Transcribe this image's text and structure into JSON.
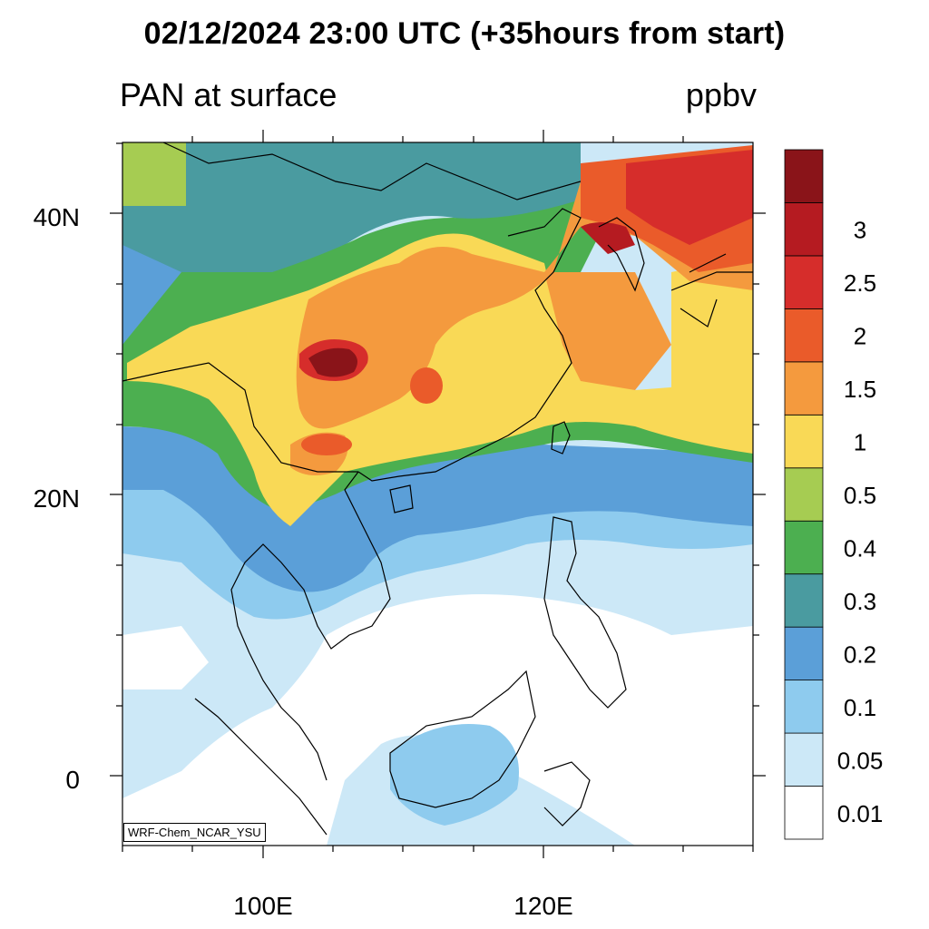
{
  "title": "02/12/2024 23:00 UTC (+35hours from start)",
  "subtitle_left": "PAN at surface",
  "subtitle_right": "ppbv",
  "credit": "WRF-Chem_NCAR_YSU",
  "map": {
    "lon_range": [
      90,
      135
    ],
    "lat_range": [
      -5,
      45
    ],
    "lat_ticks": [
      {
        "value": 40,
        "label": "40N"
      },
      {
        "value": 20,
        "label": "20N"
      },
      {
        "value": 0,
        "label": "0"
      }
    ],
    "lon_ticks": [
      {
        "value": 100,
        "label": "100E"
      },
      {
        "value": 120,
        "label": "120E"
      }
    ]
  },
  "colorbar": {
    "levels": [
      "0.01",
      "0.05",
      "0.1",
      "0.2",
      "0.3",
      "0.4",
      "0.5",
      "1",
      "1.5",
      "2",
      "2.5",
      "3"
    ],
    "colors": [
      "#ffffff",
      "#cce8f7",
      "#8ecbee",
      "#5b9fd8",
      "#4a9ba0",
      "#4caf50",
      "#a6cc52",
      "#f9d956",
      "#f49a3e",
      "#ea5b2a",
      "#d62d2b",
      "#b51b21",
      "#8a1419"
    ]
  }
}
